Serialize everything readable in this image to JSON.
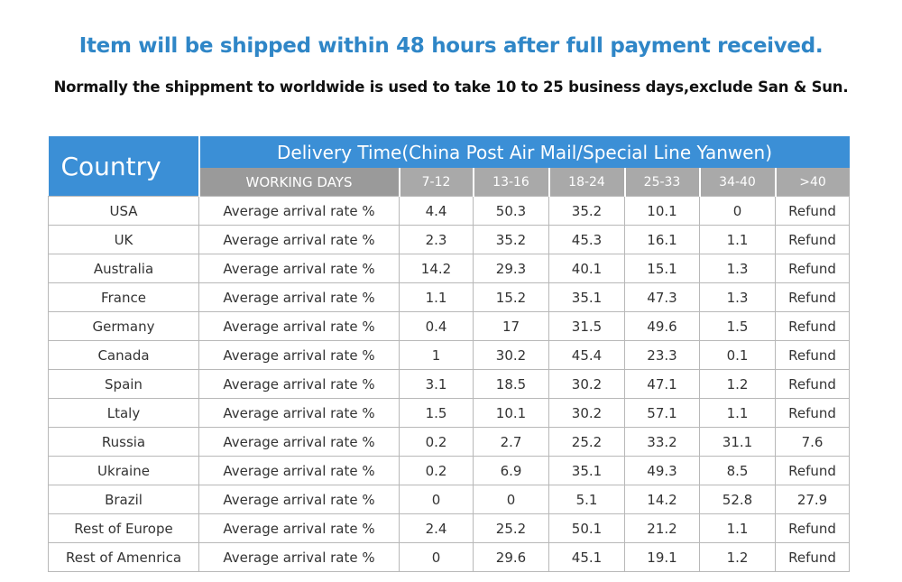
{
  "headline": "Item will be shipped within 48 hours after full payment received.",
  "subline": "Normally the shippment to worldwide is used to take 10 to 25 business days,exclude San & Sun.",
  "table": {
    "country_header": "Country",
    "delivery_header": "Delivery Time(China Post Air Mail/Special Line Yanwen)",
    "working_days_label": "WORKING DAYS",
    "ranges": [
      "7-12",
      "13-16",
      "18-24",
      "25-33",
      "34-40",
      ">40"
    ],
    "rows": [
      {
        "country": "USA",
        "label": "Average arrival rate %",
        "values": [
          "4.4",
          "50.3",
          "35.2",
          "10.1",
          "0",
          "Refund"
        ]
      },
      {
        "country": "UK",
        "label": "Average arrival rate %",
        "values": [
          "2.3",
          "35.2",
          "45.3",
          "16.1",
          "1.1",
          "Refund"
        ]
      },
      {
        "country": "Australia",
        "label": "Average arrival rate %",
        "values": [
          "14.2",
          "29.3",
          "40.1",
          "15.1",
          "1.3",
          "Refund"
        ]
      },
      {
        "country": "France",
        "label": "Average arrival rate %",
        "values": [
          "1.1",
          "15.2",
          "35.1",
          "47.3",
          "1.3",
          "Refund"
        ]
      },
      {
        "country": "Germany",
        "label": "Average arrival rate %",
        "values": [
          "0.4",
          "17",
          "31.5",
          "49.6",
          "1.5",
          "Refund"
        ]
      },
      {
        "country": "Canada",
        "label": "Average arrival rate %",
        "values": [
          "1",
          "30.2",
          "45.4",
          "23.3",
          "0.1",
          "Refund"
        ]
      },
      {
        "country": "Spain",
        "label": "Average arrival rate %",
        "values": [
          "3.1",
          "18.5",
          "30.2",
          "47.1",
          "1.2",
          "Refund"
        ]
      },
      {
        "country": "Ltaly",
        "label": "Average arrival rate %",
        "values": [
          "1.5",
          "10.1",
          "30.2",
          "57.1",
          "1.1",
          "Refund"
        ]
      },
      {
        "country": "Russia",
        "label": "Average arrival rate %",
        "values": [
          "0.2",
          "2.7",
          "25.2",
          "33.2",
          "31.1",
          "7.6"
        ]
      },
      {
        "country": "Ukraine",
        "label": "Average arrival rate %",
        "values": [
          "0.2",
          "6.9",
          "35.1",
          "49.3",
          "8.5",
          "Refund"
        ]
      },
      {
        "country": "Brazil",
        "label": "Average arrival rate %",
        "values": [
          "0",
          "0",
          "5.1",
          "14.2",
          "52.8",
          "27.9"
        ]
      },
      {
        "country": "Rest of Europe",
        "label": "Average arrival rate %",
        "values": [
          "2.4",
          "25.2",
          "50.1",
          "21.2",
          "1.1",
          "Refund"
        ]
      },
      {
        "country": "Rest of Amenrica",
        "label": "Average arrival rate %",
        "values": [
          "0",
          "29.6",
          "45.1",
          "19.1",
          "1.2",
          "Refund"
        ]
      }
    ]
  }
}
